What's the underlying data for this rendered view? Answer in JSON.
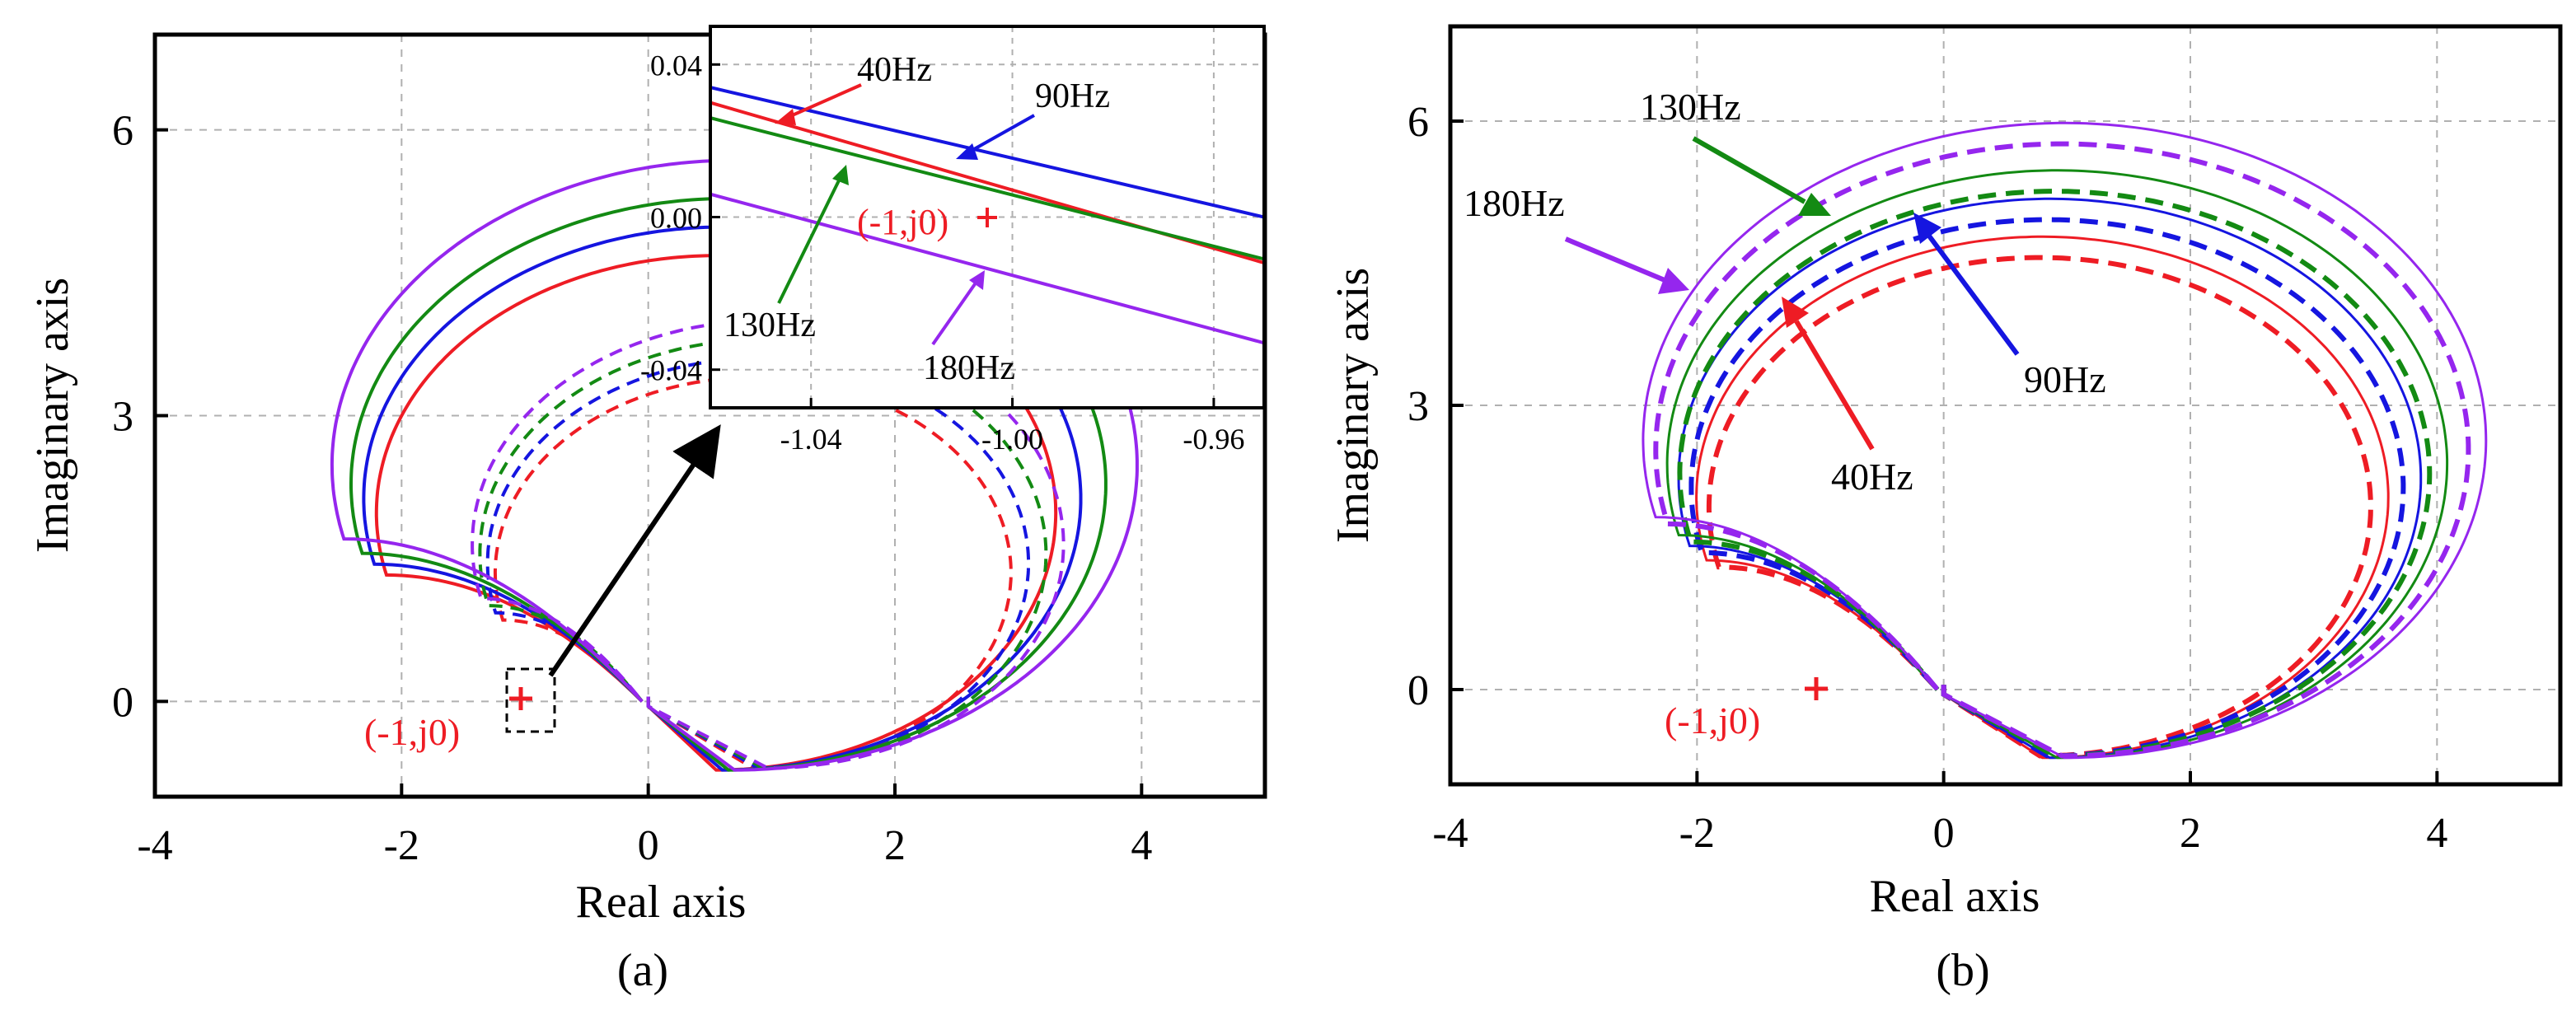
{
  "chart_data": [
    {
      "type": "line",
      "subplot_label": "(a)",
      "xlabel": "Real axis",
      "ylabel": "Imaginary axis",
      "xlim": [
        -4,
        5
      ],
      "ylim": [
        -1,
        7
      ],
      "xticks": [
        -4,
        -2,
        0,
        2,
        4
      ],
      "yticks": [
        0,
        3,
        6
      ],
      "grid": true,
      "critical_point": {
        "x": -1,
        "y": 0,
        "label": "(-1,j0)",
        "marker": "+"
      },
      "series": [
        {
          "name": "40Hz",
          "color": "#ee1c24",
          "style": "solid",
          "radius": 2.7,
          "dashed_radius": 2.05
        },
        {
          "name": "90Hz",
          "color": "#1515e0",
          "style": "solid",
          "radius": 2.85,
          "dashed_radius": 2.15
        },
        {
          "name": "130Hz",
          "color": "#138a13",
          "style": "solid",
          "radius": 3.0,
          "dashed_radius": 2.25
        },
        {
          "name": "180Hz",
          "color": "#9526ee",
          "style": "solid",
          "radius": 3.2,
          "dashed_radius": 2.35
        }
      ],
      "inset": {
        "xlim": [
          -1.06,
          -0.95
        ],
        "ylim": [
          -0.05,
          0.05
        ],
        "xticks": [
          "-1.04",
          "-1.00",
          "-0.96"
        ],
        "yticks": [
          "0.04",
          "0.00",
          "-0.04"
        ],
        "lines": [
          {
            "name": "90Hz",
            "color": "#1515e0",
            "x": [
              -1.06,
              -0.95
            ],
            "y": [
              0.034,
              0.0
            ]
          },
          {
            "name": "40Hz",
            "color": "#ee1c24",
            "x": [
              -1.06,
              -0.95
            ],
            "y": [
              0.03,
              -0.012
            ]
          },
          {
            "name": "130Hz",
            "color": "#138a13",
            "x": [
              -1.06,
              -0.95
            ],
            "y": [
              0.026,
              -0.011
            ]
          },
          {
            "name": "180Hz",
            "color": "#9526ee",
            "x": [
              -1.06,
              -0.95
            ],
            "y": [
              0.006,
              -0.033
            ]
          }
        ],
        "annotations": [
          "40Hz",
          "90Hz",
          "130Hz",
          "180Hz",
          "(-1,j0)"
        ]
      }
    },
    {
      "type": "line",
      "subplot_label": "(b)",
      "xlabel": "Real axis",
      "ylabel": "Imaginary axis",
      "xlim": [
        -4,
        5
      ],
      "ylim": [
        -1,
        7
      ],
      "xticks": [
        -4,
        -2,
        0,
        2,
        4
      ],
      "yticks": [
        0,
        3,
        6
      ],
      "grid": true,
      "critical_point": {
        "x": -1,
        "y": 0,
        "label": "(-1,j0)",
        "marker": "+"
      },
      "series": [
        {
          "name": "40Hz",
          "color": "#ee1c24",
          "style": "solid+dashed",
          "radius": 2.75
        },
        {
          "name": "90Hz",
          "color": "#1515e0",
          "style": "solid+dashed",
          "radius": 2.95
        },
        {
          "name": "130Hz",
          "color": "#138a13",
          "style": "solid+dashed",
          "radius": 3.1
        },
        {
          "name": "180Hz",
          "color": "#9526ee",
          "style": "solid+dashed",
          "radius": 3.35
        }
      ],
      "annotations": [
        "130Hz",
        "180Hz",
        "90Hz",
        "40Hz"
      ]
    }
  ]
}
